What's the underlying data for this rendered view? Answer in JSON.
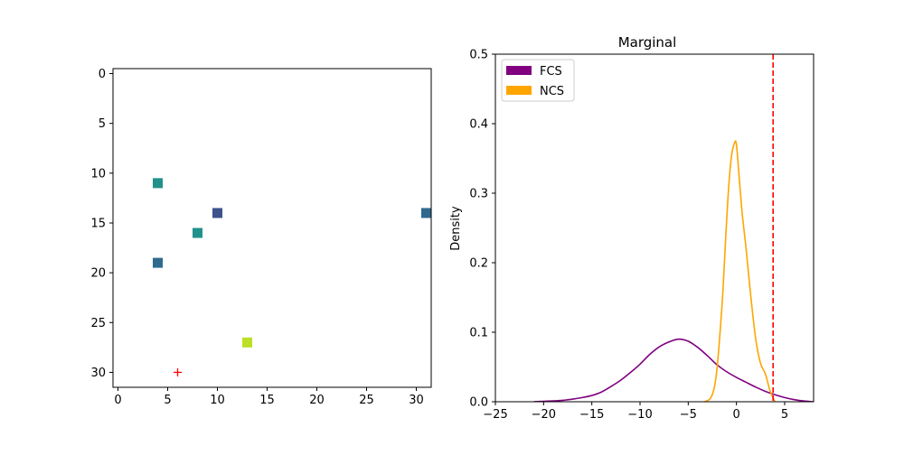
{
  "chart_data": [
    {
      "type": "scatter",
      "title": "",
      "xlabel": "",
      "ylabel": "",
      "xlim": [
        -0.5,
        31.5
      ],
      "ylim": [
        31.5,
        -0.5
      ],
      "y_inverted": true,
      "xticks": [
        0,
        5,
        10,
        15,
        20,
        25,
        30
      ],
      "yticks": [
        0,
        5,
        10,
        15,
        20,
        25,
        30
      ],
      "points": [
        {
          "x": 4,
          "y": 11,
          "color": "#21918c"
        },
        {
          "x": 10,
          "y": 14,
          "color": "#3b528b"
        },
        {
          "x": 31,
          "y": 14,
          "color": "#31688e"
        },
        {
          "x": 8,
          "y": 16,
          "color": "#21918c"
        },
        {
          "x": 4,
          "y": 19,
          "color": "#2f6b8e"
        },
        {
          "x": 13,
          "y": 27,
          "color": "#bddf26"
        }
      ],
      "marker": {
        "x": 6,
        "y": 30,
        "symbol": "+",
        "color": "#ff0000"
      }
    },
    {
      "type": "line",
      "title": "Marginal",
      "xlabel": "",
      "ylabel": "Density",
      "xlim": [
        -25,
        8
      ],
      "ylim": [
        0,
        0.5
      ],
      "xticks": [
        -25,
        -20,
        -15,
        -10,
        -5,
        0,
        5
      ],
      "yticks": [
        0.0,
        0.1,
        0.2,
        0.3,
        0.4,
        0.5
      ],
      "legend": "top-left",
      "series": [
        {
          "name": "FCS",
          "color": "#800080",
          "x": [
            -21,
            -18,
            -16,
            -15,
            -14,
            -13,
            -12,
            -11,
            -10,
            -9,
            -8,
            -7,
            -6,
            -5,
            -4,
            -3,
            -2,
            -1,
            0,
            1,
            2,
            3,
            4,
            5,
            6,
            7,
            8
          ],
          "y": [
            0.0,
            0.002,
            0.006,
            0.009,
            0.014,
            0.022,
            0.031,
            0.042,
            0.054,
            0.068,
            0.079,
            0.086,
            0.09,
            0.087,
            0.078,
            0.066,
            0.053,
            0.043,
            0.035,
            0.028,
            0.021,
            0.015,
            0.01,
            0.006,
            0.003,
            0.001,
            0.0
          ]
        },
        {
          "name": "NCS",
          "color": "#ffa500",
          "x": [
            -3.3,
            -2.7,
            -2.3,
            -2.0,
            -1.7,
            -1.4,
            -1.1,
            -0.8,
            -0.5,
            -0.2,
            0.0,
            0.3,
            0.6,
            1.0,
            1.5,
            2.0,
            2.5,
            3.0,
            3.5,
            4.0
          ],
          "y": [
            0.0,
            0.005,
            0.02,
            0.05,
            0.1,
            0.16,
            0.24,
            0.31,
            0.355,
            0.372,
            0.37,
            0.32,
            0.27,
            0.22,
            0.15,
            0.09,
            0.055,
            0.04,
            0.015,
            0.0
          ]
        }
      ],
      "vline": {
        "x": 3.8,
        "color": "#ff0000",
        "style": "dashed"
      }
    }
  ]
}
